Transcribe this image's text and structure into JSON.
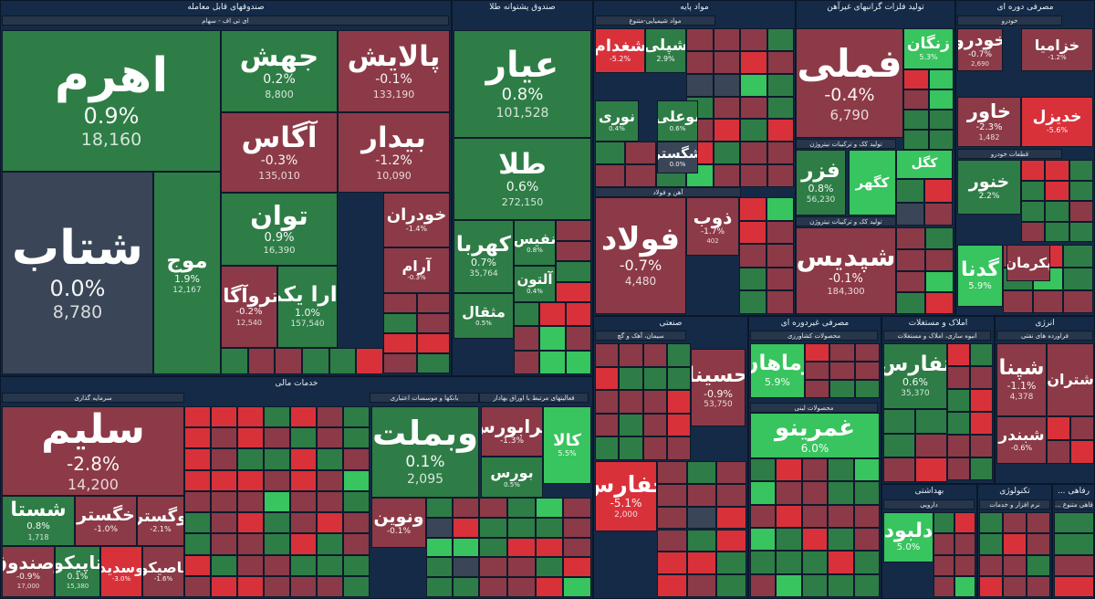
{
  "chart_data": {
    "type": "heatmap",
    "colors": {
      "strong_up": "#38c45e",
      "up": "#2e7d46",
      "flat": "#3a4657",
      "down": "#8c3a47",
      "strong_down": "#d9313a",
      "background": "#10233c"
    },
    "sectors": [
      {
        "id": "funds",
        "title": "صندوقهای قابل معامله",
        "subs": [
          "ای تی اف - سهام"
        ]
      },
      {
        "id": "gold",
        "title": "صندوق پشتوانه طلا",
        "subs": []
      },
      {
        "id": "basic",
        "title": "مواد پایه",
        "subs": [
          "مواد شیمیایی-متنوع",
          "آهن و فولاد"
        ]
      },
      {
        "id": "nonmetal",
        "title": "تولید فلزات گرانبهای غیرآهن",
        "subs": [
          "کانی های فلزی",
          "تولید کک و ترکیبات نیتروژن"
        ]
      },
      {
        "id": "cyclical",
        "title": "مصرفی دوره ای",
        "subs": [
          "خودرو",
          "قطعات خودرو"
        ]
      },
      {
        "id": "financial",
        "title": "خدمات مالی",
        "subs": [
          "سرمایه گذاری",
          "بانکها و موسسات اعتباری",
          "فعالیتهای مرتبط با اوراق بهادار"
        ]
      },
      {
        "id": "industrial",
        "title": "صنعتی",
        "subs": [
          "سیمان، آهک و گچ"
        ]
      },
      {
        "id": "noncyclical",
        "title": "مصرفی غیردوره ای",
        "subs": [
          "محصولات کشاورزی",
          "محصولات لبنی"
        ]
      },
      {
        "id": "realestate",
        "title": "املاک و مستغلات",
        "subs": [
          "انبوه سازی، املاک و مستغلات"
        ]
      },
      {
        "id": "energy",
        "title": "انرژی",
        "subs": [
          "فراورده های نفتی"
        ]
      },
      {
        "id": "health",
        "title": "بهداشتی",
        "subs": [
          "دارویی"
        ]
      },
      {
        "id": "tech",
        "title": "تکنولوژی",
        "subs": [
          "نرم افزار و خدمات"
        ]
      },
      {
        "id": "telecom",
        "title": "... رفاهی",
        "subs": [
          "... رفاهی متنوع"
        ]
      }
    ],
    "tiles": [
      {
        "name": "اهرم",
        "change": "0.9%",
        "value": "18,160",
        "pct": 0.9
      },
      {
        "name": "جهش",
        "change": "0.2%",
        "value": "8,800",
        "pct": 0.2
      },
      {
        "name": "پالایش",
        "change": "-0.1%",
        "value": "133,190",
        "pct": -0.1
      },
      {
        "name": "آگاس",
        "change": "-0.3%",
        "value": "135,010",
        "pct": -0.3
      },
      {
        "name": "بیدار",
        "change": "-1.2%",
        "value": "10,090",
        "pct": -1.2
      },
      {
        "name": "شتاب",
        "change": "0.0%",
        "value": "8,780",
        "pct": 0.0
      },
      {
        "name": "موج",
        "change": "1.9%",
        "value": "12,167",
        "pct": 1.9
      },
      {
        "name": "توان",
        "change": "0.9%",
        "value": "16,390",
        "pct": 0.9
      },
      {
        "name": "خودران",
        "change": "-1.4%",
        "value": "",
        "pct": -1.4
      },
      {
        "name": "آرام",
        "change": "-0.3%",
        "value": "",
        "pct": -0.3
      },
      {
        "name": "پتروآگاه",
        "change": "-0.2%",
        "value": "12,540",
        "pct": -0.2
      },
      {
        "name": "دارا یکم",
        "change": "1.0%",
        "value": "157,540",
        "pct": 1.0
      },
      {
        "name": "عیار",
        "change": "0.8%",
        "value": "101,528",
        "pct": 0.8
      },
      {
        "name": "طلا",
        "change": "0.6%",
        "value": "272,150",
        "pct": 0.6
      },
      {
        "name": "کهربا",
        "change": "0.7%",
        "value": "35,764",
        "pct": 0.7
      },
      {
        "name": "نفیس",
        "change": "0.8%",
        "value": "",
        "pct": 0.8
      },
      {
        "name": "آلتون",
        "change": "0.4%",
        "value": "",
        "pct": 0.4
      },
      {
        "name": "مثقال",
        "change": "0.5%",
        "value": "",
        "pct": 0.5
      },
      {
        "name": "شغدام",
        "change": "-5.2%",
        "value": "",
        "pct": -5.2
      },
      {
        "name": "شپلی",
        "change": "2.9%",
        "value": "",
        "pct": 2.9
      },
      {
        "name": "نوری",
        "change": "0.4%",
        "value": "",
        "pct": 0.4
      },
      {
        "name": "بوعلی",
        "change": "0.6%",
        "value": "",
        "pct": 0.6
      },
      {
        "name": "شگستر",
        "change": "0.0%",
        "value": "",
        "pct": 0.0
      },
      {
        "name": "فولاد",
        "change": "-0.7%",
        "value": "4,480",
        "pct": -0.7
      },
      {
        "name": "ذوب",
        "change": "-1.7%",
        "value": "402",
        "pct": -1.7
      },
      {
        "name": "فملی",
        "change": "-0.4%",
        "value": "6,790",
        "pct": -0.4
      },
      {
        "name": "فزر",
        "change": "0.8%",
        "value": "56,230",
        "pct": 0.8
      },
      {
        "name": "شپدیس",
        "change": "-0.1%",
        "value": "184,300",
        "pct": -0.1
      },
      {
        "name": "زنگان",
        "change": "5.3%",
        "value": "",
        "pct": 5.3
      },
      {
        "name": "کگهر",
        "change": "",
        "value": "",
        "pct": 3.5
      },
      {
        "name": "کگل",
        "change": "",
        "value": "",
        "pct": 4.1
      },
      {
        "name": "خودرو",
        "change": "-0.7%",
        "value": "2,690",
        "pct": -0.7
      },
      {
        "name": "خاور",
        "change": "-2.3%",
        "value": "1,482",
        "pct": -2.3
      },
      {
        "name": "خزامیا",
        "change": "-1.2%",
        "value": "",
        "pct": -1.2
      },
      {
        "name": "خدیزل",
        "change": "-5.6%",
        "value": "",
        "pct": -5.6
      },
      {
        "name": "خنور",
        "change": "2.2%",
        "value": "",
        "pct": 2.2
      },
      {
        "name": "گدنا",
        "change": "5.9%",
        "value": "",
        "pct": 5.9
      },
      {
        "name": "پکرمان",
        "change": "",
        "value": "",
        "pct": -1.5
      },
      {
        "name": "سلیم",
        "change": "-2.8%",
        "value": "14,200",
        "pct": -2.8
      },
      {
        "name": "شستا",
        "change": "0.8%",
        "value": "1,718",
        "pct": 0.8
      },
      {
        "name": "خگستر",
        "change": "-1.0%",
        "value": "",
        "pct": -1.0
      },
      {
        "name": "وگستر",
        "change": "-2.1%",
        "value": "",
        "pct": -2.1
      },
      {
        "name": "وصندوق",
        "change": "-0.9%",
        "value": "17,000",
        "pct": -0.9
      },
      {
        "name": "تاپیکو",
        "change": "0.1%",
        "value": "15,380",
        "pct": 0.1
      },
      {
        "name": "وسدید",
        "change": "-3.0%",
        "value": "",
        "pct": -3.0
      },
      {
        "name": "تاصیکو",
        "change": "-1.6%",
        "value": "",
        "pct": -1.6
      },
      {
        "name": "وبملت",
        "change": "0.1%",
        "value": "2,095",
        "pct": 0.1
      },
      {
        "name": "ونوین",
        "change": "-0.1%",
        "value": "",
        "pct": -0.1
      },
      {
        "name": "فرابورس",
        "change": "-1.3%",
        "value": "",
        "pct": -1.3
      },
      {
        "name": "بورس",
        "change": "0.5%",
        "value": "",
        "pct": 0.5
      },
      {
        "name": "کالا",
        "change": "5.5%",
        "value": "",
        "pct": 5.5
      },
      {
        "name": "حسینا",
        "change": "-0.9%",
        "value": "53,750",
        "pct": -0.9
      },
      {
        "name": "حفارس",
        "change": "-5.1%",
        "value": "2,000",
        "pct": -5.1
      },
      {
        "name": "زماهان",
        "change": "5.9%",
        "value": "",
        "pct": 5.9
      },
      {
        "name": "غمرینو",
        "change": "6.0%",
        "value": "",
        "pct": 6.0
      },
      {
        "name": "ثفارس",
        "change": "0.6%",
        "value": "35,370",
        "pct": 0.6
      },
      {
        "name": "شپنا",
        "change": "-1.1%",
        "value": "4,378",
        "pct": -1.1
      },
      {
        "name": "شبندر",
        "change": "-0.6%",
        "value": "",
        "pct": -0.6
      },
      {
        "name": "شتران",
        "change": "",
        "value": "",
        "pct": -1.0
      },
      {
        "name": "دلبود",
        "change": "5.0%",
        "value": "",
        "pct": 5.0
      }
    ]
  }
}
